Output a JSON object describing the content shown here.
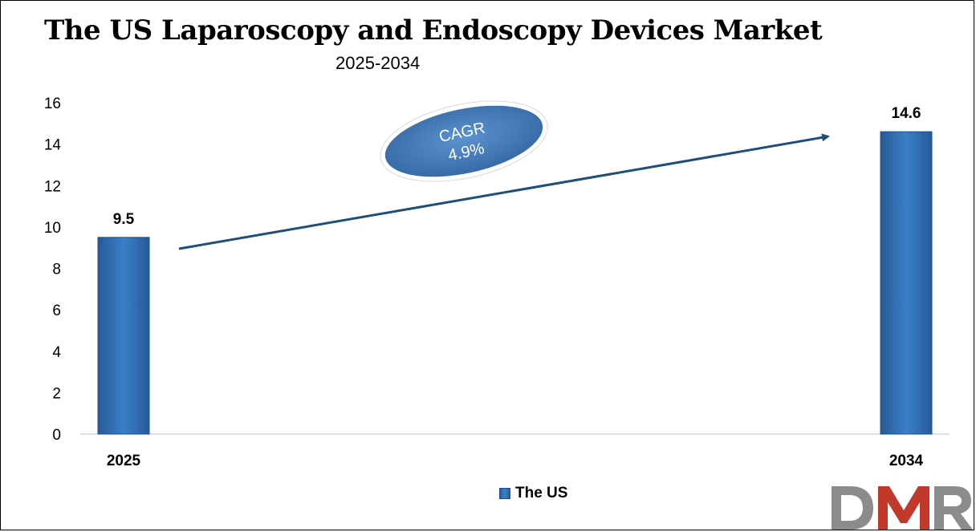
{
  "title": "The US Laparoscopy and Endoscopy Devices Market",
  "subtitle": "2025-2034",
  "chart_data": {
    "type": "bar",
    "categories": [
      "2025",
      "2034"
    ],
    "series": [
      {
        "name": "The US",
        "values": [
          9.5,
          14.6
        ]
      }
    ],
    "data_labels": [
      "9.5",
      "14.6"
    ],
    "ylim": [
      0,
      16
    ],
    "yticks": [
      0,
      2,
      4,
      6,
      8,
      10,
      12,
      14,
      16
    ],
    "grid": false,
    "legend_position": "bottom-center",
    "bar_color": "#3673b8",
    "annotation": {
      "label": "CAGR",
      "value": "4.9%"
    }
  },
  "legend": {
    "label": "The US"
  },
  "logo": {
    "text": "DMR",
    "colors": {
      "d": "#8c8c8c",
      "m": "#c0392b",
      "r": "#8c8c8c"
    }
  }
}
